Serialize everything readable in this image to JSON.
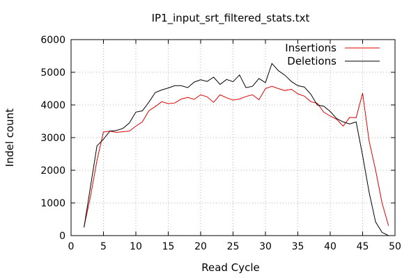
{
  "chart_data": {
    "type": "line",
    "title": "IP1_input_srt_filtered_stats.txt",
    "xlabel": "Read Cycle",
    "ylabel": "Indel count",
    "xlim": [
      0,
      50
    ],
    "ylim": [
      0,
      6000
    ],
    "xticks": [
      0,
      5,
      10,
      15,
      20,
      25,
      30,
      35,
      40,
      45,
      50
    ],
    "yticks": [
      0,
      1000,
      2000,
      3000,
      4000,
      5000,
      6000
    ],
    "grid": true,
    "legend_position": "top-right",
    "series": [
      {
        "name": "Insertions",
        "color": "#e00000",
        "x": [
          2,
          3,
          4,
          5,
          6,
          7,
          8,
          9,
          10,
          11,
          12,
          13,
          14,
          15,
          16,
          17,
          18,
          19,
          20,
          21,
          22,
          23,
          24,
          25,
          26,
          27,
          28,
          29,
          30,
          31,
          32,
          33,
          34,
          35,
          36,
          37,
          38,
          39,
          40,
          41,
          42,
          43,
          44,
          45,
          46,
          47,
          48,
          49
        ],
        "y": [
          270,
          1200,
          2300,
          3170,
          3200,
          3160,
          3180,
          3200,
          3350,
          3480,
          3820,
          3950,
          4100,
          4040,
          4060,
          4180,
          4230,
          4170,
          4310,
          4250,
          4080,
          4310,
          4220,
          4150,
          4180,
          4260,
          4310,
          4160,
          4500,
          4570,
          4500,
          4440,
          4480,
          4340,
          4270,
          4100,
          4050,
          3780,
          3660,
          3560,
          3350,
          3620,
          3610,
          4360,
          2900,
          2010,
          1000,
          300
        ]
      },
      {
        "name": "Deletions",
        "color": "#000000",
        "x": [
          2,
          3,
          4,
          5,
          6,
          7,
          8,
          9,
          10,
          11,
          12,
          13,
          14,
          15,
          16,
          17,
          18,
          19,
          20,
          21,
          22,
          23,
          24,
          25,
          26,
          27,
          28,
          29,
          30,
          31,
          32,
          33,
          34,
          35,
          36,
          37,
          38,
          39,
          40,
          41,
          42,
          43,
          44,
          45,
          46,
          47,
          48,
          49
        ],
        "y": [
          250,
          1500,
          2750,
          2950,
          3200,
          3220,
          3280,
          3450,
          3780,
          3820,
          4080,
          4380,
          4460,
          4520,
          4590,
          4590,
          4530,
          4700,
          4770,
          4720,
          4850,
          4630,
          4780,
          4710,
          4920,
          4530,
          4570,
          4810,
          4680,
          5270,
          5050,
          4910,
          4720,
          4590,
          4550,
          4330,
          4000,
          3960,
          3800,
          3580,
          3480,
          3420,
          3480,
          2450,
          1330,
          420,
          100,
          0
        ]
      }
    ]
  }
}
